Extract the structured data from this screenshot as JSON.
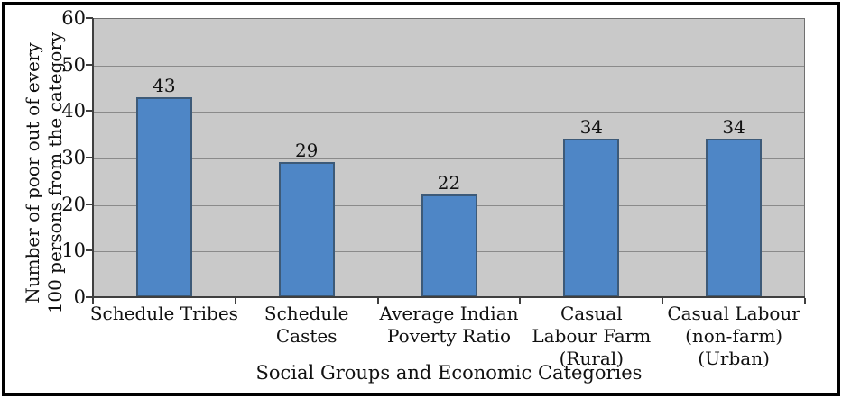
{
  "chart_data": {
    "type": "bar",
    "title": "",
    "categories": [
      "Schedule Tribes",
      "Schedule\nCastes",
      "Average Indian\nPoverty Ratio",
      "Casual\nLabour Farm\n(Rural)",
      "Casual Labour\n(non-farm)\n(Urban)"
    ],
    "values": [
      43,
      29,
      22,
      34,
      34
    ],
    "bar_value_labels": [
      "43",
      "29",
      "22",
      "34",
      "34"
    ],
    "xlabel": "Social Groups and Economic Categories",
    "ylabel": "Number of poor out of every\n100 persons  from the category",
    "ylim": [
      0,
      60
    ],
    "yticks": [
      0,
      10,
      20,
      30,
      40,
      50,
      60
    ],
    "grid": true,
    "legend": "none",
    "colors": {
      "bar_fill": "#4e86c6",
      "bar_border": "#3d5a78",
      "plot_bg": "#c9c9c9",
      "gridline": "#8a8a8a",
      "axis": "#3f3f3f",
      "text": "#111111",
      "frame": "#000000"
    }
  }
}
